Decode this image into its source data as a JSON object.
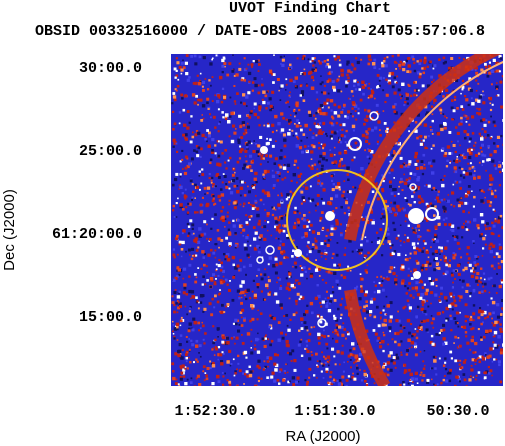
{
  "header": {
    "title": "UVOT Finding Chart",
    "subtitle": "OBSID 00332516000 / DATE-OBS 2008-10-24T05:57:06.8"
  },
  "axes": {
    "y_label": "Dec (J2000)",
    "x_label": "RA (J2000)",
    "y_ticks": [
      "30:00.0",
      "25:00.0",
      "61:20:00.0",
      "15:00.0"
    ],
    "x_ticks": [
      "1:52:30.0",
      "1:51:30.0",
      "50:30.0"
    ]
  }
}
